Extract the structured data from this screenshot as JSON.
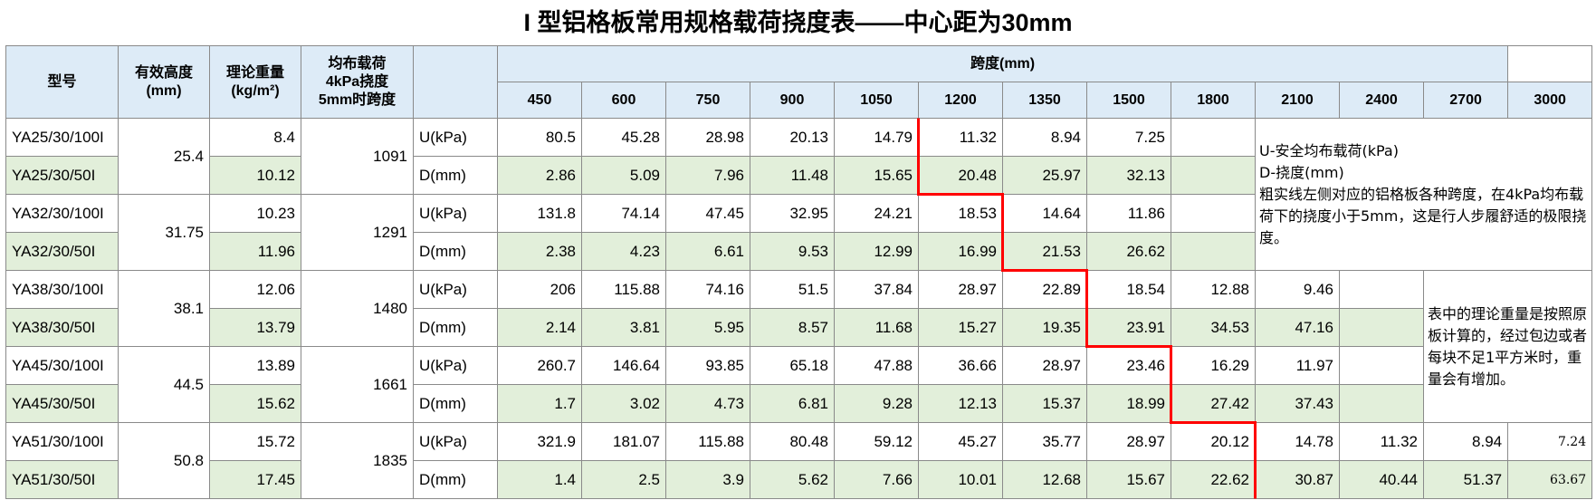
{
  "title": "I 型铝格板常用规格载荷挠度表——中心距为30mm",
  "table": {
    "header": {
      "model": "型号",
      "height": [
        "有效高度",
        "(mm)"
      ],
      "weight": [
        "理论重量",
        "(kg/m²)"
      ],
      "span_load": [
        "均布载荷",
        "4kPa挠度",
        "5mm时跨度"
      ],
      "span_group": "跨度(mm)"
    },
    "spans": [
      450,
      600,
      750,
      900,
      1050,
      1200,
      1350,
      1500,
      1800,
      2100,
      2400,
      2700,
      3000
    ],
    "groups": [
      {
        "height": 25.4,
        "span": 1091,
        "rows": [
          {
            "model": "YA25/30/100I",
            "weight": 8.4,
            "label": "U(kPa)",
            "values": [
              80.5,
              45.28,
              28.98,
              20.13,
              14.79,
              11.32,
              8.94,
              7.25
            ]
          },
          {
            "model": "YA25/30/50I",
            "weight": 10.12,
            "label": "D(mm)",
            "values": [
              2.86,
              5.09,
              7.96,
              11.48,
              15.65,
              20.48,
              25.97,
              32.13
            ]
          }
        ]
      },
      {
        "height": 31.75,
        "span": 1291,
        "rows": [
          {
            "model": "YA32/30/100I",
            "weight": 10.23,
            "label": "U(kPa)",
            "values": [
              131.8,
              74.14,
              47.45,
              32.95,
              24.21,
              18.53,
              14.64,
              11.86
            ]
          },
          {
            "model": "YA32/30/50I",
            "weight": 11.96,
            "label": "D(mm)",
            "values": [
              2.38,
              4.23,
              6.61,
              9.53,
              12.99,
              16.99,
              21.53,
              26.62
            ]
          }
        ]
      },
      {
        "height": 38.1,
        "span": 1480,
        "rows": [
          {
            "model": "YA38/30/100I",
            "weight": 12.06,
            "label": "U(kPa)",
            "values": [
              206,
              115.88,
              74.16,
              51.5,
              37.84,
              28.97,
              22.89,
              18.54,
              12.88,
              9.46
            ]
          },
          {
            "model": "YA38/30/50I",
            "weight": 13.79,
            "label": "D(mm)",
            "values": [
              2.14,
              3.81,
              5.95,
              8.57,
              11.68,
              15.27,
              19.35,
              23.91,
              34.53,
              47.16
            ]
          }
        ]
      },
      {
        "height": 44.5,
        "span": 1661,
        "rows": [
          {
            "model": "YA45/30/100I",
            "weight": 13.89,
            "label": "U(kPa)",
            "values": [
              260.7,
              146.64,
              93.85,
              65.18,
              47.88,
              36.66,
              28.97,
              23.46,
              16.29,
              11.97
            ]
          },
          {
            "model": "YA45/30/50I",
            "weight": 15.62,
            "label": "D(mm)",
            "values": [
              1.7,
              3.02,
              4.73,
              6.81,
              9.28,
              12.13,
              15.37,
              18.99,
              27.42,
              37.43
            ]
          }
        ]
      },
      {
        "height": 50.8,
        "span": 1835,
        "rows": [
          {
            "model": "YA51/30/100I",
            "weight": 15.72,
            "label": "U(kPa)",
            "values": [
              321.9,
              181.07,
              115.88,
              80.48,
              59.12,
              45.27,
              35.77,
              28.97,
              20.12,
              14.78,
              11.32,
              8.94,
              7.24
            ]
          },
          {
            "model": "YA51/30/50I",
            "weight": 17.45,
            "label": "D(mm)",
            "values": [
              1.4,
              2.5,
              3.9,
              5.62,
              7.66,
              10.01,
              12.68,
              15.67,
              22.62,
              30.87,
              40.44,
              51.37,
              63.67
            ]
          }
        ]
      }
    ],
    "notes": [
      [
        "U-安全均布载荷(kPa)",
        "D-挠度(mm)",
        "粗实线左侧对应的铝格板各种跨度，在4kPa均布载荷下的挠度小于5mm，这是行人步履舒适的极限挠度。"
      ],
      [
        "表中的理论重量是按照原板计算的，经过包边或者每块不足1平方米时，重量会有增加。"
      ]
    ]
  }
}
